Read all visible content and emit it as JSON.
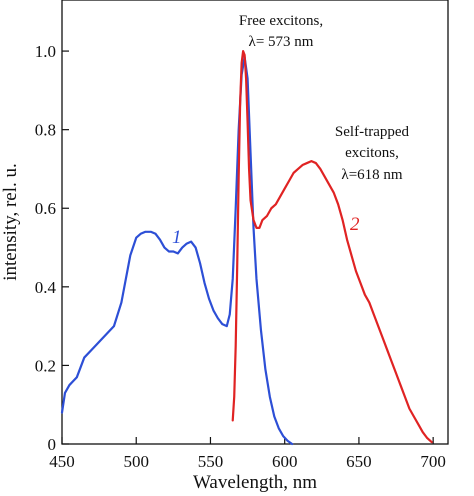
{
  "chart_data": {
    "type": "line",
    "title": "",
    "xlabel": "Wavelength, nm",
    "ylabel": "intensity, rel. u.",
    "xlim": [
      450,
      710
    ],
    "ylim": [
      0,
      1.13
    ],
    "xticks": [
      450,
      500,
      550,
      600,
      650,
      700
    ],
    "xtick_labels": [
      "450",
      "500",
      "550",
      "600",
      "650",
      "700"
    ],
    "yticks": [
      0,
      0.2,
      0.4,
      0.6,
      0.8,
      1.0
    ],
    "ytick_labels": [
      "0",
      "0.2",
      "0.4",
      "0.6",
      "0.8",
      "1.0"
    ],
    "grid": false,
    "legend": "none",
    "annotations": {
      "free_line1": "Free excitons,",
      "free_line2": "λ= 573 nm",
      "st_line1": "Self-trapped",
      "st_line2": "excitons,",
      "st_line3": "λ=618 nm"
    },
    "series": [
      {
        "name": "1",
        "color": "#2d4fd6",
        "x": [
          450,
          452,
          455,
          460,
          465,
          470,
          475,
          480,
          485,
          490,
          493,
          496,
          500,
          503,
          506,
          510,
          513,
          516,
          519,
          522,
          525,
          528,
          531,
          534,
          537,
          540,
          543,
          546,
          549,
          552,
          555,
          558,
          561,
          563,
          565,
          567,
          569,
          571,
          573,
          575,
          577,
          579,
          581,
          584,
          587,
          590,
          593,
          596,
          599,
          602,
          605
        ],
        "y": [
          0.08,
          0.13,
          0.15,
          0.17,
          0.22,
          0.24,
          0.26,
          0.28,
          0.3,
          0.36,
          0.42,
          0.48,
          0.525,
          0.535,
          0.54,
          0.54,
          0.535,
          0.52,
          0.5,
          0.49,
          0.49,
          0.485,
          0.5,
          0.51,
          0.515,
          0.5,
          0.46,
          0.41,
          0.37,
          0.34,
          0.32,
          0.305,
          0.3,
          0.33,
          0.42,
          0.6,
          0.8,
          0.94,
          0.985,
          0.93,
          0.74,
          0.55,
          0.42,
          0.29,
          0.19,
          0.12,
          0.07,
          0.04,
          0.02,
          0.008,
          0.0
        ]
      },
      {
        "name": "2",
        "color": "#e02323",
        "x": [
          565,
          566,
          567,
          568,
          569,
          570,
          571,
          572,
          573,
          574,
          575,
          576,
          577,
          579,
          581,
          583,
          585,
          588,
          591,
          594,
          597,
          600,
          603,
          606,
          609,
          612,
          615,
          618,
          621,
          624,
          627,
          630,
          633,
          636,
          639,
          642,
          645,
          648,
          651,
          654,
          657,
          660,
          663,
          666,
          669,
          672,
          675,
          678,
          681,
          684,
          687,
          690,
          693,
          696,
          699
        ],
        "y": [
          0.06,
          0.12,
          0.25,
          0.45,
          0.68,
          0.87,
          0.97,
          1.0,
          0.99,
          0.93,
          0.82,
          0.7,
          0.62,
          0.57,
          0.55,
          0.55,
          0.57,
          0.58,
          0.6,
          0.61,
          0.63,
          0.65,
          0.67,
          0.69,
          0.7,
          0.71,
          0.715,
          0.72,
          0.715,
          0.7,
          0.68,
          0.66,
          0.64,
          0.61,
          0.57,
          0.52,
          0.48,
          0.44,
          0.41,
          0.38,
          0.36,
          0.33,
          0.3,
          0.27,
          0.24,
          0.21,
          0.18,
          0.15,
          0.12,
          0.09,
          0.07,
          0.05,
          0.03,
          0.015,
          0.005
        ]
      }
    ]
  }
}
